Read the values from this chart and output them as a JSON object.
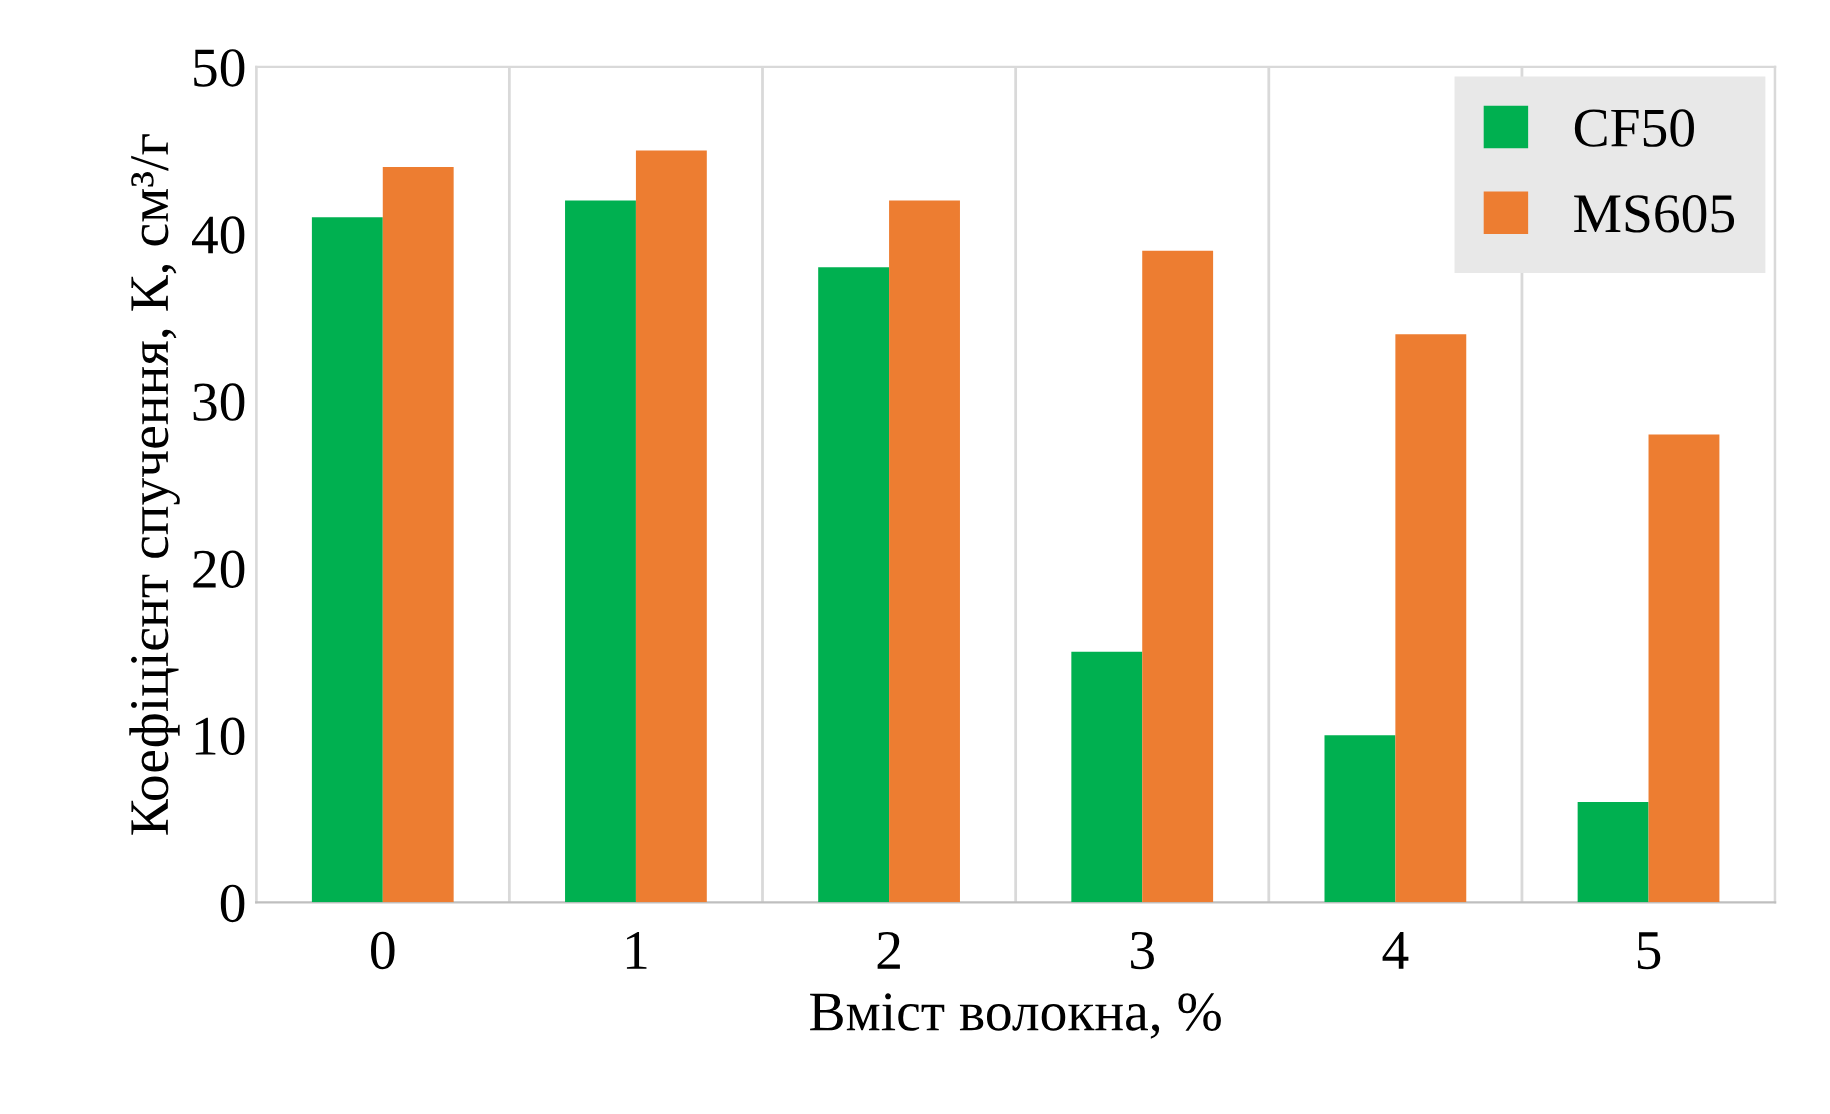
{
  "chart_data": {
    "type": "bar",
    "xlabel": "Вміст волокна, %",
    "ylabel": "Коефіцієнт спучення, К, см³/г",
    "categories": [
      "0",
      "1",
      "2",
      "3",
      "4",
      "5"
    ],
    "series": [
      {
        "name": "CF50",
        "color": "#00b050",
        "values": [
          41,
          42,
          38,
          15,
          10,
          6
        ]
      },
      {
        "name": "MS605",
        "color": "#ed7d31",
        "values": [
          44,
          45,
          42,
          39,
          34,
          28
        ]
      }
    ],
    "ylim": [
      0,
      50
    ],
    "yticks": [
      0,
      10,
      20,
      30,
      40,
      50
    ],
    "grid": "x",
    "legend": "top right"
  }
}
